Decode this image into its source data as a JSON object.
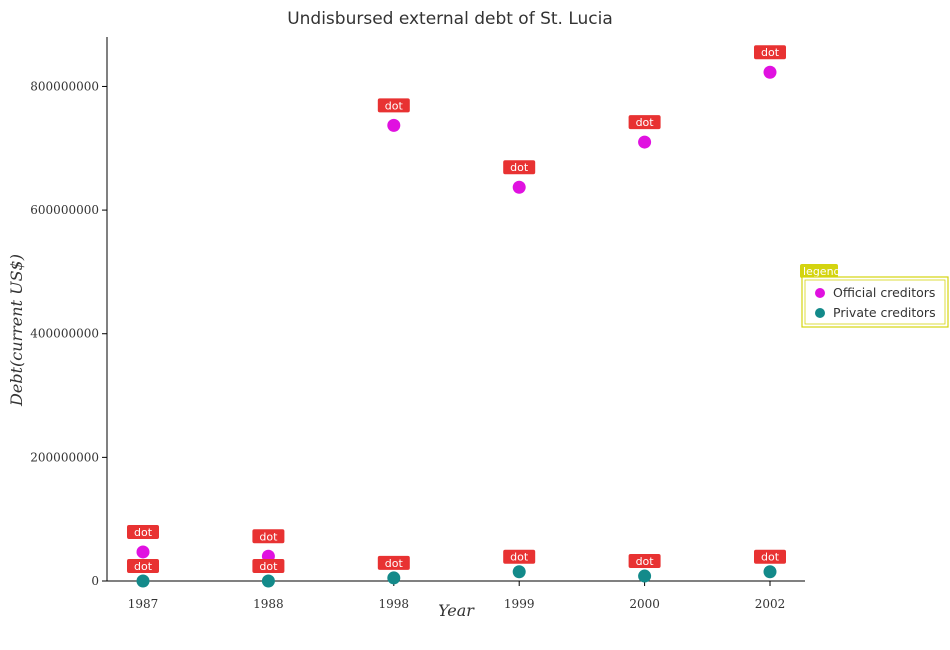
{
  "chart_data": {
    "type": "scatter",
    "title": "Undisbursed external debt of St. Lucia",
    "xlabel": "Year",
    "ylabel": "Debt(current US$)",
    "categories": [
      "1987",
      "1988",
      "1998",
      "1999",
      "2000",
      "2002"
    ],
    "ylim": [
      0,
      880000000
    ],
    "yticks": [
      0,
      200000000,
      400000000,
      600000000,
      800000000
    ],
    "ytick_labels": [
      "0",
      "200000000",
      "400000000",
      "600000000",
      "800000000"
    ],
    "series": [
      {
        "name": "Official creditors",
        "color": "#e011e0",
        "values": [
          47000000,
          40000000,
          737000000,
          637000000,
          710000000,
          823000000
        ]
      },
      {
        "name": "Private creditors",
        "color": "#138a8a",
        "values": [
          0,
          0,
          5000000,
          15000000,
          8000000,
          15000000
        ]
      }
    ],
    "point_label": "dot",
    "label_color": "#e83232",
    "legend": {
      "title": "legend",
      "position": "right",
      "title_color": "#d4d40f"
    },
    "grid": false
  }
}
